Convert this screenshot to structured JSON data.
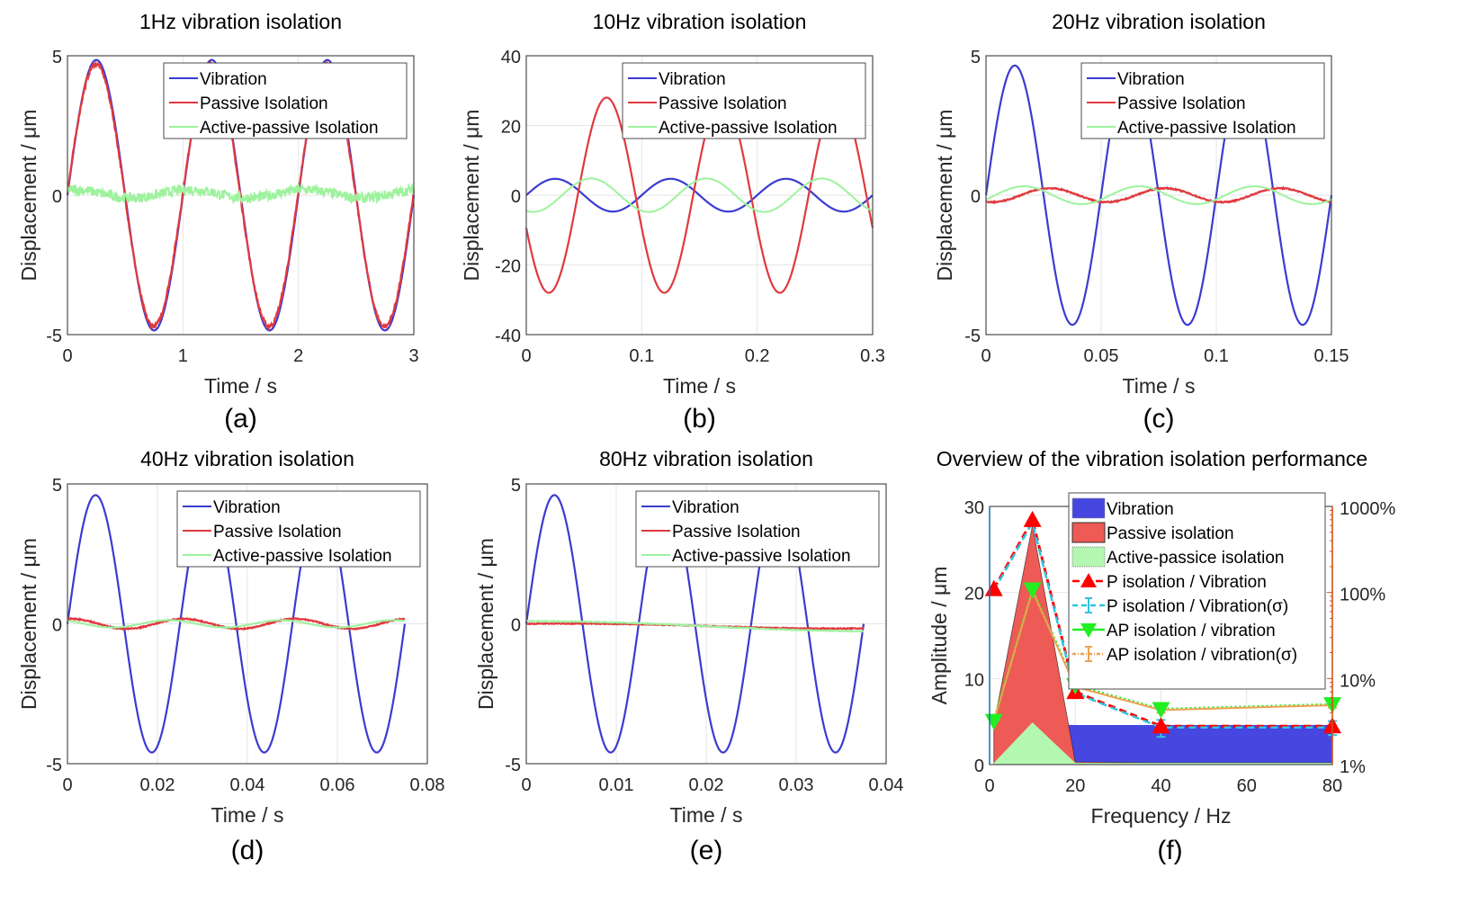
{
  "figure": {
    "panels": [
      {
        "id": "a",
        "label": "(a)",
        "title": "1Hz vibration isolation"
      },
      {
        "id": "b",
        "label": "(b)",
        "title": "10Hz vibration isolation"
      },
      {
        "id": "c",
        "label": "(c)",
        "title": "20Hz vibration isolation"
      },
      {
        "id": "d",
        "label": "(d)",
        "title": "40Hz vibration isolation"
      },
      {
        "id": "e",
        "label": "(e)",
        "title": "80Hz vibration isolation"
      },
      {
        "id": "f",
        "label": "(f)",
        "title": "Overview of the vibration isolation performance"
      }
    ],
    "colors": {
      "vibration": "#3b3bd1",
      "passive": "#e0393e",
      "active_passive": "#9ef29e",
      "vibration_area": "#4646e0",
      "passive_area": "#ee5a55",
      "ap_area": "#b3f7b0",
      "left_axis": "#1f77b4",
      "right_axis": "#d95319",
      "p_ratio": "#ff0000",
      "p_ratio_sigma": "#2ec4e0",
      "ap_ratio": "#22ee22",
      "ap_ratio_sigma": "#f0a050"
    }
  },
  "chart_data": [
    {
      "type": "line",
      "panel": "a",
      "title": "1Hz vibration isolation",
      "xlabel": "Time / s",
      "ylabel": "Displacement / μm",
      "xlim": [
        0,
        3
      ],
      "ylim": [
        -5,
        5
      ],
      "xticks": [
        "0",
        "1",
        "2",
        "3"
      ],
      "xtick_values": [
        0,
        1,
        2,
        3
      ],
      "yticks": [
        "-5",
        "0",
        "5"
      ],
      "ytick_values": [
        -5,
        0,
        5
      ],
      "grid": true,
      "legend_position": "top-right",
      "series": [
        {
          "name": "Vibration",
          "model": "sine",
          "amplitude": 4.85,
          "frequency_hz": 1,
          "phase_rad": 0,
          "offset": 0,
          "noise": 0
        },
        {
          "name": "Passive Isolation",
          "model": "sine",
          "amplitude": 4.7,
          "frequency_hz": 1,
          "phase_rad": 0.02,
          "offset": 0,
          "noise": 0.08
        },
        {
          "name": "Active-passive Isolation",
          "model": "sine",
          "amplitude": 0.15,
          "frequency_hz": 1,
          "phase_rad": 1.2,
          "offset": 0.05,
          "noise": 0.18
        }
      ]
    },
    {
      "type": "line",
      "panel": "b",
      "title": "10Hz vibration isolation",
      "xlabel": "Time / s",
      "ylabel": "Displacement / μm",
      "xlim": [
        0,
        0.3
      ],
      "ylim": [
        -40,
        40
      ],
      "xticks": [
        "0",
        "0.1",
        "0.2",
        "0.3"
      ],
      "xtick_values": [
        0,
        0.1,
        0.2,
        0.3
      ],
      "yticks": [
        "-40",
        "-20",
        "0",
        "20",
        "40"
      ],
      "ytick_values": [
        -40,
        -20,
        0,
        20,
        40
      ],
      "grid": true,
      "legend_position": "top-right",
      "series": [
        {
          "name": "Vibration",
          "model": "sine",
          "amplitude": 4.7,
          "frequency_hz": 10,
          "phase_rad": 0,
          "offset": 0,
          "noise": 0
        },
        {
          "name": "Passive Isolation",
          "model": "sine",
          "amplitude": 28,
          "frequency_hz": 10,
          "phase_rad": -2.8,
          "offset": 0,
          "noise": 0
        },
        {
          "name": "Active-passive Isolation",
          "model": "sine",
          "amplitude": 4.8,
          "frequency_hz": 10,
          "phase_rad": -1.95,
          "offset": 0,
          "noise": 0
        }
      ]
    },
    {
      "type": "line",
      "panel": "c",
      "title": "20Hz vibration isolation",
      "xlabel": "Time / s",
      "ylabel": "Displacement / μm",
      "xlim": [
        0,
        0.15
      ],
      "ylim": [
        -5,
        5
      ],
      "xticks": [
        "0",
        "0.05",
        "0.1",
        "0.15"
      ],
      "xtick_values": [
        0,
        0.05,
        0.1,
        0.15
      ],
      "yticks": [
        "-5",
        "0",
        "5"
      ],
      "ytick_values": [
        -5,
        0,
        5
      ],
      "grid": true,
      "legend_position": "top-right",
      "series": [
        {
          "name": "Vibration",
          "model": "sine",
          "amplitude": 4.65,
          "frequency_hz": 20,
          "phase_rad": 0,
          "offset": 0,
          "noise": 0
        },
        {
          "name": "Passive Isolation",
          "model": "sine",
          "amplitude": 0.25,
          "frequency_hz": 20,
          "phase_rad": -1.9,
          "offset": 0,
          "noise": 0.02
        },
        {
          "name": "Active-passive Isolation",
          "model": "sine",
          "amplitude": 0.32,
          "frequency_hz": 20,
          "phase_rad": -0.5,
          "offset": 0,
          "noise": 0
        }
      ]
    },
    {
      "type": "line",
      "panel": "d",
      "title": "40Hz vibration isolation",
      "xlabel": "Time / s",
      "ylabel": "Displacement / μm",
      "xlim": [
        0,
        0.08
      ],
      "ylim": [
        -5,
        5
      ],
      "xticks": [
        "0",
        "0.02",
        "0.04",
        "0.06",
        "0.08"
      ],
      "xtick_values": [
        0,
        0.02,
        0.04,
        0.06,
        0.08
      ],
      "yticks": [
        "-5",
        "0",
        "5"
      ],
      "ytick_values": [
        -5,
        0,
        5
      ],
      "grid": true,
      "legend_position": "top-right",
      "series": [
        {
          "name": "Vibration",
          "model": "sine",
          "amplitude": 4.6,
          "frequency_hz": 40,
          "phase_rad": 0,
          "offset": 0,
          "t_end": 0.075,
          "noise": 0
        },
        {
          "name": "Passive Isolation",
          "model": "sine",
          "amplitude": 0.18,
          "frequency_hz": 40,
          "phase_rad": 1.4,
          "offset": 0,
          "t_end": 0.075,
          "noise": 0.02
        },
        {
          "name": "Active-passive Isolation",
          "model": "sine",
          "amplitude": 0.13,
          "frequency_hz": 40,
          "phase_rad": 2.2,
          "offset": 0,
          "t_end": 0.075,
          "noise": 0.01
        }
      ]
    },
    {
      "type": "line",
      "panel": "e",
      "title": "80Hz vibration isolation",
      "xlabel": "Time / s",
      "ylabel": "Displacement / μm",
      "xlim": [
        0,
        0.04
      ],
      "ylim": [
        -5,
        5
      ],
      "xticks": [
        "0",
        "0.01",
        "0.02",
        "0.03",
        "0.04"
      ],
      "xtick_values": [
        0,
        0.01,
        0.02,
        0.03,
        0.04
      ],
      "yticks": [
        "-5",
        "0",
        "5"
      ],
      "ytick_values": [
        -5,
        0,
        5
      ],
      "grid": true,
      "legend_position": "top-right",
      "series": [
        {
          "name": "Vibration",
          "model": "sine",
          "amplitude": 4.6,
          "frequency_hz": 80,
          "phase_rad": 0,
          "offset": 0,
          "t_end": 0.0375,
          "noise": 0
        },
        {
          "name": "Passive Isolation",
          "model": "drift",
          "start": 0.0,
          "end": -0.15,
          "noise": 0.015,
          "t_end": 0.0375
        },
        {
          "name": "Active-passive Isolation",
          "model": "drift",
          "start": 0.1,
          "end": -0.25,
          "noise": 0.015,
          "t_end": 0.0375
        }
      ]
    },
    {
      "type": "area+line",
      "panel": "f",
      "title": "Overview of the vibration isolation performance",
      "xlabel": "Frequency / Hz",
      "ylabel": "Amplitude / μm",
      "xlim": [
        0,
        80
      ],
      "ylim": [
        0,
        30
      ],
      "y2lim": [
        1,
        1000
      ],
      "y2scale": "log",
      "xticks": [
        "0",
        "20",
        "40",
        "60",
        "80"
      ],
      "xtick_values": [
        0,
        20,
        40,
        60,
        80
      ],
      "yticks": [
        "0",
        "10",
        "20",
        "30"
      ],
      "ytick_values": [
        0,
        10,
        20,
        30
      ],
      "y2ticks": [
        "1%",
        "10%",
        "100%",
        "1000%"
      ],
      "y2tick_values": [
        1,
        10,
        100,
        1000
      ],
      "grid": true,
      "legend_position": "top-right",
      "x": [
        1,
        10,
        20,
        40,
        80
      ],
      "areas": [
        {
          "name": "Vibration",
          "values": [
            4.8,
            4.7,
            4.6,
            4.6,
            4.6
          ]
        },
        {
          "name": "Passive isolation",
          "values": [
            4.7,
            27.8,
            0.3,
            0.2,
            0.2
          ]
        },
        {
          "name": "Active-passice isolation",
          "values": [
            0.2,
            4.9,
            0.2,
            0.2,
            0.2
          ]
        }
      ],
      "ratio_series": [
        {
          "name": "P isolation / Vibration",
          "axis": "right",
          "values_percent": [
            110,
            700,
            7,
            2.8,
            2.8
          ],
          "marker": "triangle-up",
          "style": "dashed"
        },
        {
          "name": "P isolation / Vibration(σ)",
          "axis": "right",
          "values_percent": [
            105,
            650,
            6.8,
            2.7,
            2.7
          ],
          "error_percent": [
            0,
            0,
            0.4,
            0.6,
            0.5
          ],
          "style": "dashed"
        },
        {
          "name": "AP isolation / vibration",
          "axis": "right",
          "values_percent": [
            3.2,
            108,
            8.3,
            4.4,
            5.0
          ],
          "marker": "triangle-down",
          "style": "dotted"
        },
        {
          "name": "AP isolation / vibration(σ)",
          "axis": "right",
          "values_percent": [
            3.2,
            105,
            8.0,
            4.3,
            4.9
          ],
          "error_percent": [
            0,
            0,
            0.3,
            0.3,
            0.3
          ],
          "style": "dash-dot"
        }
      ]
    }
  ]
}
